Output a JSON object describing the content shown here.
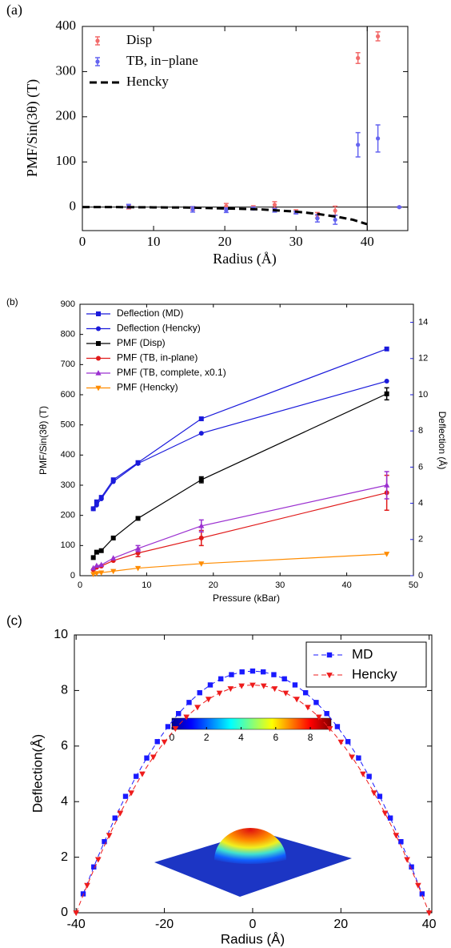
{
  "chart_data": [
    {
      "type": "errorbar",
      "label": "(a)",
      "xlabel": "Radius (Å)",
      "ylabel": "PMF/Sin(3θ) (T)",
      "xlim": [
        0,
        45.7
      ],
      "ylim": [
        -52,
        400
      ],
      "xticks": [
        0,
        10,
        20,
        30,
        40
      ],
      "yticks": [
        0,
        100,
        200,
        300,
        400
      ],
      "hline": 0,
      "vline": 40,
      "legend": "upper left",
      "series": [
        {
          "name": "Disp",
          "color": "#f26b6b",
          "marker": "dot",
          "x": [
            6.5,
            15.5,
            20.2,
            24,
            27,
            30,
            33,
            35.5,
            38.7,
            41.5,
            44.5
          ],
          "values": [
            0,
            -3,
            2,
            -1,
            5,
            -10,
            -18,
            -8,
            330,
            378,
            0
          ],
          "errors": [
            4,
            4,
            6,
            4,
            7,
            4,
            6,
            10,
            12,
            10,
            1
          ]
        },
        {
          "name": "TB, in−plane",
          "color": "#6464f0",
          "marker": "dot",
          "x": [
            6.5,
            15.5,
            20.2,
            24,
            27,
            30,
            33,
            35.5,
            38.7,
            41.5,
            44.5
          ],
          "values": [
            2,
            -5,
            -7,
            -3,
            -7,
            -12,
            -25,
            -28,
            138,
            152,
            0
          ],
          "errors": [
            4,
            6,
            5,
            3,
            4,
            3,
            8,
            10,
            27,
            30,
            1
          ]
        },
        {
          "name": "Hencky",
          "color": "#000000",
          "dash": true,
          "x": [
            0,
            5,
            10,
            15,
            20,
            25,
            30,
            33,
            36,
            38,
            40
          ],
          "values": [
            0,
            0,
            -0.5,
            -1,
            -3,
            -5,
            -10,
            -15,
            -22,
            -28,
            -38
          ]
        }
      ]
    },
    {
      "type": "line",
      "label": "(b)",
      "xlabel": "Pressure (kBar)",
      "ylabel": "PMF/Sin(3θ) (T)",
      "y2label": "Deflection (Å)",
      "xlim": [
        0,
        50
      ],
      "ylim": [
        0,
        900
      ],
      "y2lim": [
        0,
        15
      ],
      "xticks": [
        0,
        10,
        20,
        30,
        40,
        50
      ],
      "yticks": [
        0,
        100,
        200,
        300,
        400,
        500,
        600,
        700,
        800,
        900
      ],
      "y2ticks": [
        0,
        2,
        4,
        6,
        8,
        10,
        12,
        14
      ],
      "y2color": "#1a1adb",
      "legend": "upper left",
      "x": [
        2,
        2.5,
        3.2,
        5,
        8.7,
        18.2,
        46
      ],
      "series": [
        {
          "name": "Deflection (MD)",
          "color": "#1a1adb",
          "marker": "square",
          "axis": "y2",
          "values": [
            3.7,
            4.08,
            4.33,
            5.3,
            6.25,
            8.67,
            12.53
          ]
        },
        {
          "name": "Deflection (Hencky)",
          "color": "#1a1adb",
          "marker": "circle",
          "axis": "y2",
          "values": [
            3.7,
            3.9,
            4.25,
            5.2,
            6.2,
            7.87,
            10.75
          ]
        },
        {
          "name": "PMF (Disp)",
          "color": "#000000",
          "marker": "square",
          "values": [
            60,
            78,
            83,
            125,
            190,
            318,
            603
          ],
          "errors": [
            null,
            null,
            null,
            null,
            null,
            10,
            20
          ]
        },
        {
          "name": "PMF (TB, in-plane)",
          "color": "#e01a1a",
          "marker": "circle",
          "values": [
            20,
            28,
            32,
            50,
            75,
            125,
            275
          ],
          "errors": [
            null,
            null,
            null,
            null,
            12,
            25,
            58
          ]
        },
        {
          "name": "PMF (TB, complete, x0.1)",
          "color": "#9b30d0",
          "marker": "tri-up",
          "values": [
            25,
            33,
            36,
            58,
            90,
            165,
            300
          ],
          "errors": [
            null,
            null,
            null,
            null,
            10,
            20,
            45
          ]
        },
        {
          "name": "PMF (Hencky)",
          "color": "#ff8c00",
          "marker": "tri-down",
          "values": [
            5,
            8,
            10,
            15,
            25,
            40,
            72
          ]
        }
      ]
    },
    {
      "type": "line",
      "label": "(c)",
      "xlabel": "Radius (Å)",
      "ylabel": "Deflection(Å)",
      "xlim": [
        -40.4,
        40.6
      ],
      "ylim": [
        0,
        10
      ],
      "xticks": [
        -40,
        -20,
        0,
        20,
        40
      ],
      "yticks": [
        0,
        2,
        4,
        6,
        8,
        10
      ],
      "legend": "upper right",
      "colorbar": {
        "lim": [
          0,
          9.2
        ],
        "ticks": [
          0,
          2,
          4,
          6,
          8
        ]
      },
      "series": [
        {
          "name": "MD",
          "color": "#1a1aff",
          "marker": "square",
          "dash": true,
          "x": [
            -38.4,
            -36,
            -33.6,
            -31.2,
            -28.8,
            -26.4,
            -24,
            -21.6,
            -19.2,
            -16.8,
            -14.4,
            -12,
            -9.6,
            -7.2,
            -4.8,
            -2.4,
            0,
            2.4,
            4.8,
            7.2,
            9.6,
            12,
            14.4,
            16.8,
            19.2,
            21.6,
            24,
            26.4,
            28.8,
            31.2,
            33.6,
            36,
            38.4
          ],
          "values": [
            0.68,
            1.65,
            2.56,
            3.41,
            4.19,
            4.91,
            5.57,
            6.16,
            6.7,
            7.17,
            7.57,
            7.92,
            8.2,
            8.42,
            8.57,
            8.67,
            8.7,
            8.67,
            8.57,
            8.42,
            8.2,
            7.92,
            7.57,
            7.17,
            6.7,
            6.16,
            5.57,
            4.91,
            4.19,
            3.41,
            2.56,
            1.65,
            0.68
          ]
        },
        {
          "name": "Hencky",
          "color": "#ee1c1c",
          "marker": "tri-down",
          "dash": true,
          "x": [
            -40,
            -37.5,
            -35,
            -32.5,
            -30,
            -27.5,
            -25,
            -22.5,
            -20,
            -17.5,
            -15,
            -12.5,
            -10,
            -7.5,
            -5,
            -2.5,
            0,
            2.5,
            5,
            7.5,
            10,
            12.5,
            15,
            17.5,
            20,
            22.5,
            25,
            27.5,
            30,
            32.5,
            35,
            37.5,
            40
          ],
          "values": [
            0,
            0.99,
            1.92,
            2.79,
            3.59,
            4.32,
            5,
            5.61,
            6.15,
            6.63,
            7.05,
            7.4,
            7.69,
            7.91,
            8.07,
            8.17,
            8.2,
            8.17,
            8.07,
            7.91,
            7.69,
            7.4,
            7.05,
            6.63,
            6.15,
            5.61,
            5,
            4.32,
            3.59,
            2.79,
            1.92,
            0.99,
            0
          ]
        }
      ]
    }
  ]
}
